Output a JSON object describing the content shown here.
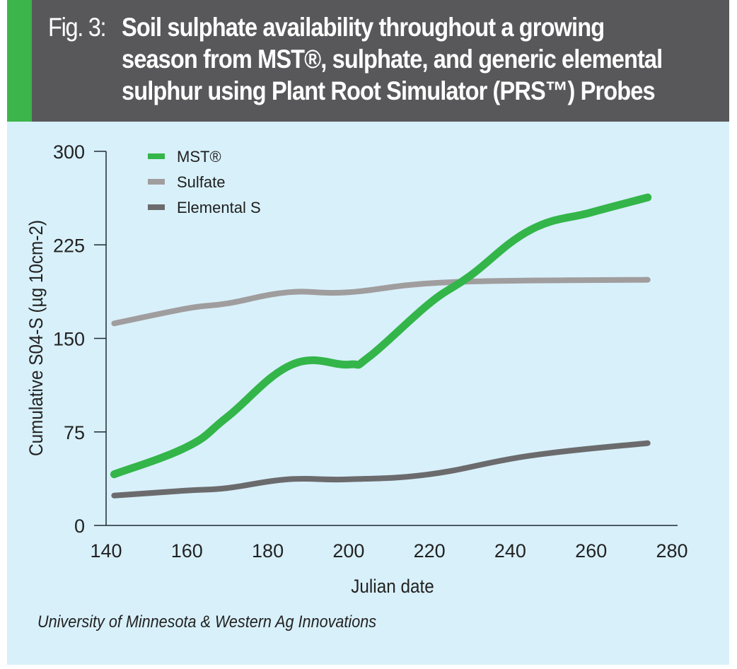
{
  "figure": {
    "label": "Fig. 3:",
    "title_lines": [
      "Soil sulphate availability throughout a growing",
      "season from MST®, sulphate, and generic elemental",
      "sulphur using Plant Root Simulator (PRS™) Probes"
    ],
    "source": "University of Minnesota & Western Ag Innovations",
    "colors": {
      "header_bg": "#58585a",
      "accent": "#3cb54a",
      "panel_bg": "#d8f0fa"
    }
  },
  "chart_data": {
    "type": "line",
    "title": "Soil sulphate availability throughout a growing season from MST®, sulphate, and generic elemental sulphur using Plant Root Simulator (PRS™) Probes",
    "xlabel": "Julian date",
    "ylabel": "Cumulative S04-S (µg 10cm-2)",
    "xlim": [
      140,
      280
    ],
    "ylim": [
      0,
      300
    ],
    "xticks": [
      140,
      160,
      180,
      200,
      220,
      240,
      260,
      280
    ],
    "yticks": [
      0,
      75,
      150,
      225,
      300
    ],
    "grid": false,
    "legend_position": "top-left",
    "series": [
      {
        "name": "MST®",
        "color": "#33b54a",
        "x": [
          142,
          160,
          170,
          186,
          200,
          205,
          220,
          230,
          245,
          260,
          274
        ],
        "values": [
          41,
          63,
          87,
          129,
          129,
          135,
          178,
          200,
          237,
          251,
          263
        ]
      },
      {
        "name": "Sulfate",
        "color": "#a09d9e",
        "x": [
          142,
          160,
          170,
          185,
          200,
          225,
          274
        ],
        "values": [
          162,
          174,
          178,
          187,
          187,
          195,
          197
        ]
      },
      {
        "name": "Elemental S",
        "color": "#6b6b6d",
        "x": [
          142,
          160,
          170,
          185,
          200,
          220,
          245,
          274
        ],
        "values": [
          24,
          28,
          30,
          37,
          37,
          41,
          56,
          66
        ]
      }
    ]
  }
}
